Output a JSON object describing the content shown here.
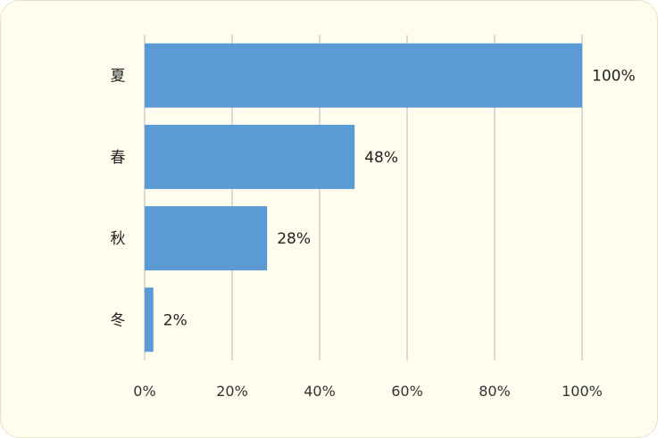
{
  "chart_data": {
    "type": "bar",
    "orientation": "horizontal",
    "categories": [
      "夏",
      "春",
      "秋",
      "冬"
    ],
    "values": [
      100,
      48,
      28,
      2
    ],
    "data_labels": [
      "100%",
      "48%",
      "28%",
      "2%"
    ],
    "xlim": [
      0,
      100
    ],
    "x_ticks": [
      0,
      20,
      40,
      60,
      80,
      100
    ],
    "x_tick_labels": [
      "0%",
      "20%",
      "40%",
      "60%",
      "80%",
      "100%"
    ],
    "title": "",
    "xlabel": "",
    "ylabel": "",
    "grid": "vertical",
    "legend": "none",
    "bar_color": "#5b9bd5",
    "background_color": "#fefdee",
    "gridline_color": "#d9d9d9"
  }
}
